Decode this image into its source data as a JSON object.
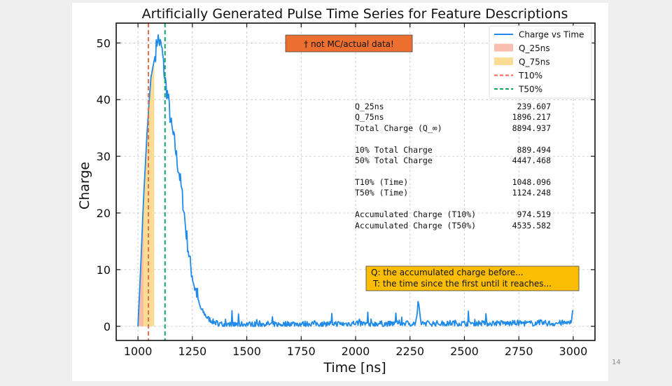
{
  "slide": {
    "page_number": "14"
  },
  "chart_data": {
    "type": "line",
    "title": "Artificially Generated Pulse Time Series for Feature Descriptions",
    "xlabel": "Time [ns]",
    "ylabel": "Charge",
    "xlim": [
      900,
      3100
    ],
    "ylim": [
      -2.5,
      53.5
    ],
    "xticks": [
      1000,
      1250,
      1500,
      1750,
      2000,
      2250,
      2500,
      2750,
      3000
    ],
    "yticks": [
      0,
      10,
      20,
      30,
      40,
      50
    ],
    "grid": true,
    "legend_position": "top-right",
    "series": [
      {
        "name": "Charge vs Time",
        "color": "#1f8ae8",
        "points": [
          [
            1000,
            0
          ],
          [
            1012,
            10
          ],
          [
            1025,
            22
          ],
          [
            1040,
            33
          ],
          [
            1050,
            39
          ],
          [
            1060,
            44
          ],
          [
            1070,
            46
          ],
          [
            1080,
            48
          ],
          [
            1090,
            51
          ],
          [
            1100,
            50
          ],
          [
            1110,
            49
          ],
          [
            1120,
            45
          ],
          [
            1130,
            42
          ],
          [
            1140,
            40
          ],
          [
            1150,
            36
          ],
          [
            1160,
            34
          ],
          [
            1170,
            32
          ],
          [
            1180,
            29
          ],
          [
            1190,
            27
          ],
          [
            1200,
            24
          ],
          [
            1210,
            21
          ],
          [
            1220,
            17
          ],
          [
            1230,
            14
          ],
          [
            1240,
            11
          ],
          [
            1250,
            9
          ],
          [
            1260,
            7
          ],
          [
            1270,
            6
          ],
          [
            1280,
            4
          ],
          [
            1290,
            3
          ],
          [
            1300,
            2.5
          ],
          [
            1310,
            2
          ],
          [
            1320,
            1.4
          ],
          [
            1330,
            1.2
          ],
          [
            1345,
            0.8
          ],
          [
            1360,
            0.6
          ],
          [
            1380,
            0.4
          ],
          [
            1400,
            0.3
          ],
          [
            1450,
            0.3
          ],
          [
            1500,
            0.4
          ],
          [
            1550,
            0.3
          ],
          [
            1600,
            0.4
          ],
          [
            1650,
            0.3
          ],
          [
            1700,
            0.5
          ],
          [
            1750,
            0.4
          ],
          [
            1800,
            0.5
          ],
          [
            1850,
            0.4
          ],
          [
            1900,
            0.5
          ],
          [
            1950,
            0.4
          ],
          [
            2000,
            0.6
          ],
          [
            2050,
            0.4
          ],
          [
            2100,
            0.5
          ],
          [
            2150,
            0.4
          ],
          [
            2200,
            0.6
          ],
          [
            2250,
            0.5
          ],
          [
            2275,
            0.5
          ],
          [
            2290,
            3.5
          ],
          [
            2300,
            0.6
          ],
          [
            2350,
            0.5
          ],
          [
            2400,
            0.5
          ],
          [
            2450,
            0.6
          ],
          [
            2500,
            0.5
          ],
          [
            2550,
            0.6
          ],
          [
            2600,
            0.5
          ],
          [
            2650,
            0.6
          ],
          [
            2700,
            0.5
          ],
          [
            2750,
            0.6
          ],
          [
            2800,
            0.5
          ],
          [
            2850,
            0.6
          ],
          [
            2900,
            0.5
          ],
          [
            2950,
            0.6
          ],
          [
            2990,
            0.5
          ],
          [
            2997,
            3
          ],
          [
            3000,
            2
          ]
        ]
      }
    ],
    "shaded_regions": [
      {
        "name": "Q_25ns",
        "color": "#f7b7a7",
        "x_from": 1000,
        "x_to": 1025
      },
      {
        "name": "Q_75ns",
        "color": "#fbd88a",
        "x_from": 1000,
        "x_to": 1075
      }
    ],
    "vlines": [
      {
        "name": "T10%",
        "x": 1048.096,
        "color": "#ee6a49"
      },
      {
        "name": "T50%",
        "x": 1124.248,
        "color": "#12a464"
      }
    ],
    "stats_table": [
      {
        "label": "Q_25ns",
        "value": "239.607"
      },
      {
        "label": "Q_75ns",
        "value": "1896.217"
      },
      {
        "label": "Total Charge (Q_∞)",
        "value": "8894.937"
      },
      {
        "label": "10% Total Charge",
        "value": "889.494"
      },
      {
        "label": "50% Total Charge",
        "value": "4447.468"
      },
      {
        "label": "T10% (Time)",
        "value": "1048.096"
      },
      {
        "label": "T50% (Time)",
        "value": "1124.248"
      },
      {
        "label": "Accumulated Charge (T10%)",
        "value": "974.519"
      },
      {
        "label": "Accumulated Charge (T50%)",
        "value": "4535.582"
      }
    ],
    "annotations": {
      "disclaimer": "† not MC/actual data!",
      "note_line1": "Q: the accumulated charge before...",
      "note_line2": "T: the time since the first until it reaches..."
    }
  }
}
